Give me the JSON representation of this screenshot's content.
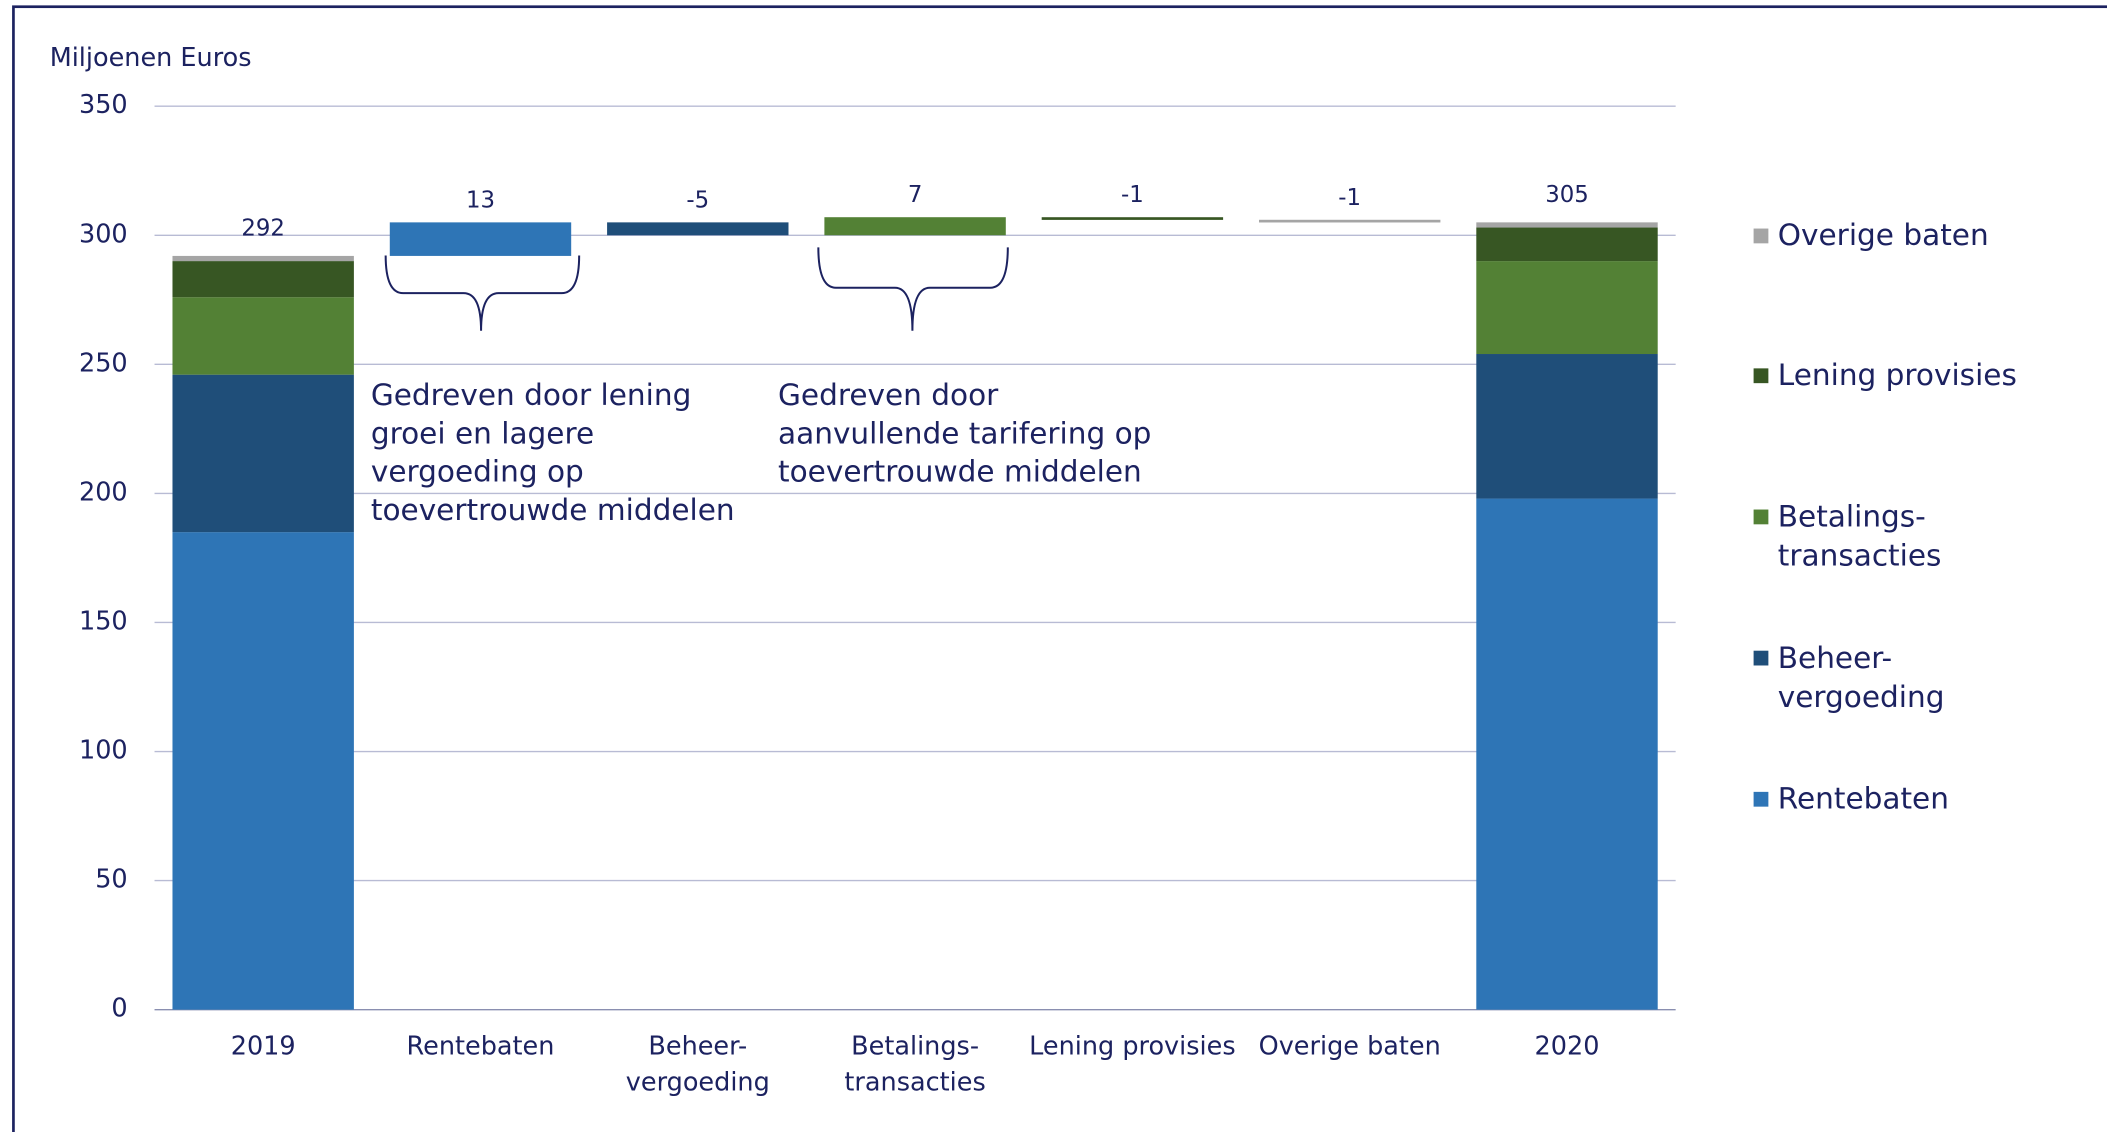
{
  "chart_data": {
    "type": "waterfall",
    "y_label": "Miljoenen Euros",
    "categories": [
      "2019",
      "Rentebaten",
      "Beheer-\nvergoeding",
      "Betalings-\ntransacties",
      "Lening provisies",
      "Overige baten",
      "2020"
    ],
    "series": [
      {
        "name": "Rentebaten",
        "color": "#2e75b6",
        "values": [
          185,
          13,
          null,
          null,
          null,
          null,
          198
        ]
      },
      {
        "name": "Beheer-\nvergoeding",
        "color": "#1f4e79",
        "values": [
          61,
          null,
          -5,
          null,
          null,
          null,
          56
        ]
      },
      {
        "name": "Betalings-\ntransacties",
        "color": "#538135",
        "values": [
          30,
          null,
          null,
          7,
          null,
          null,
          36
        ]
      },
      {
        "name": "Lening provisies",
        "color": "#375623",
        "values": [
          14,
          null,
          null,
          null,
          -1,
          null,
          13
        ]
      },
      {
        "name": "Overige baten",
        "color": "#a5a5a5",
        "values": [
          2,
          null,
          null,
          null,
          null,
          -1,
          2
        ]
      }
    ],
    "totals": [
      292,
      null,
      null,
      null,
      null,
      null,
      305
    ],
    "ylim": [
      0,
      350
    ],
    "yticks": [
      0,
      50,
      100,
      150,
      200,
      250,
      300,
      350
    ],
    "grid": true,
    "legend": "right",
    "annotations": [
      {
        "lines": [
          "Gedreven door lening",
          "groei en lagere",
          "vergoeding op",
          "toevertrouwde middelen"
        ]
      },
      {
        "lines": [
          "Gedreven door",
          "aanvullende tarifering op",
          "toevertrouwde middelen"
        ]
      }
    ]
  }
}
